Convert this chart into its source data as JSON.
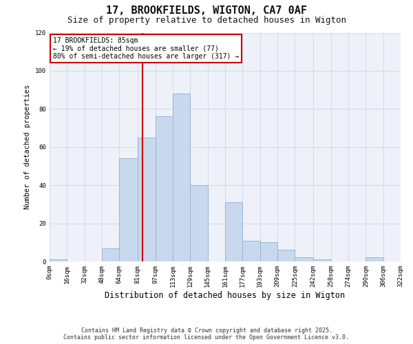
{
  "title": "17, BROOKFIELDS, WIGTON, CA7 0AF",
  "subtitle": "Size of property relative to detached houses in Wigton",
  "xlabel": "Distribution of detached houses by size in Wigton",
  "ylabel": "Number of detached properties",
  "bin_edges": [
    0,
    16,
    32,
    48,
    64,
    81,
    97,
    113,
    129,
    145,
    161,
    177,
    193,
    209,
    225,
    242,
    258,
    274,
    290,
    306,
    322
  ],
  "bin_labels": [
    "0sqm",
    "16sqm",
    "32sqm",
    "48sqm",
    "64sqm",
    "81sqm",
    "97sqm",
    "113sqm",
    "129sqm",
    "145sqm",
    "161sqm",
    "177sqm",
    "193sqm",
    "209sqm",
    "225sqm",
    "242sqm",
    "258sqm",
    "274sqm",
    "290sqm",
    "306sqm",
    "322sqm"
  ],
  "counts": [
    1,
    0,
    0,
    7,
    54,
    65,
    76,
    88,
    40,
    0,
    31,
    11,
    10,
    6,
    2,
    1,
    0,
    0,
    2,
    0
  ],
  "bar_color": "#c8d9ee",
  "bar_edgecolor": "#9ab5d5",
  "property_value": 85,
  "vline_color": "#cc0000",
  "annotation_line1": "17 BROOKFIELDS: 85sqm",
  "annotation_line2": "← 19% of detached houses are smaller (77)",
  "annotation_line3": "80% of semi-detached houses are larger (317) →",
  "annotation_boxcolor": "#ffffff",
  "annotation_edgecolor": "#cc0000",
  "ylim": [
    0,
    120
  ],
  "yticks": [
    0,
    20,
    40,
    60,
    80,
    100,
    120
  ],
  "grid_color": "#d5dce8",
  "background_color": "#ffffff",
  "plot_bg_color": "#eef2f8",
  "footer_line1": "Contains HM Land Registry data © Crown copyright and database right 2025.",
  "footer_line2": "Contains public sector information licensed under the Open Government Licence v3.0.",
  "title_fontsize": 11,
  "subtitle_fontsize": 9,
  "xlabel_fontsize": 8.5,
  "ylabel_fontsize": 7.5,
  "tick_fontsize": 6.5,
  "annotation_fontsize": 7,
  "footer_fontsize": 6
}
